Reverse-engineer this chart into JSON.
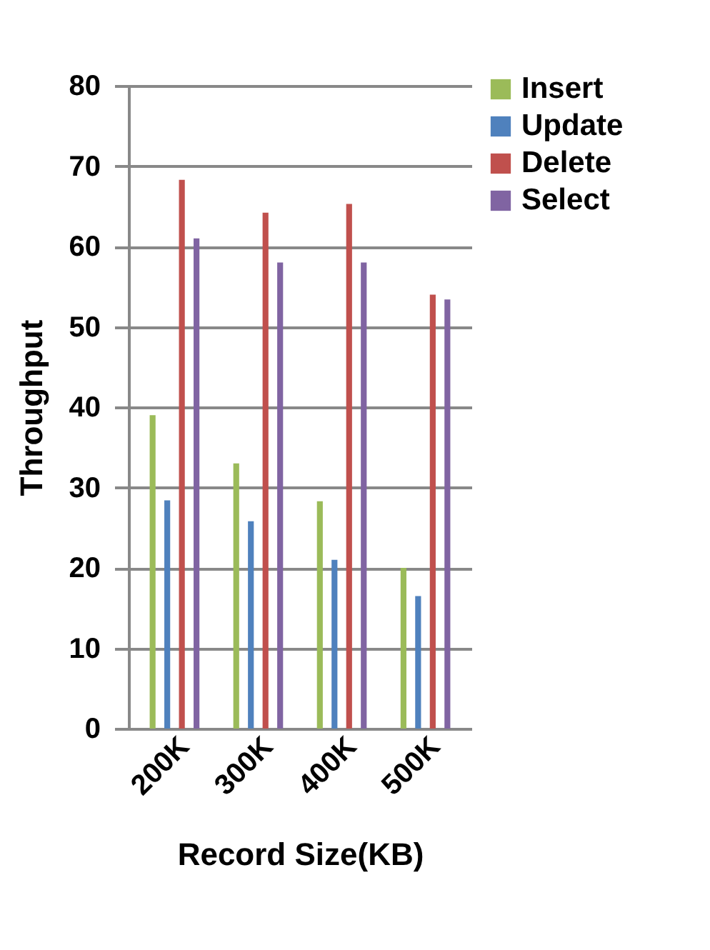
{
  "chart_data": {
    "type": "bar",
    "xlabel": "Record Size(KB)",
    "ylabel": "Throughput",
    "categories": [
      "200K",
      "300K",
      "400K",
      "500K"
    ],
    "series": [
      {
        "name": "Insert",
        "color": "#9bbb59",
        "values": [
          39,
          33,
          28.3,
          20
        ]
      },
      {
        "name": "Update",
        "color": "#4f81bd",
        "values": [
          28.4,
          25.8,
          21,
          16.5
        ]
      },
      {
        "name": "Delete",
        "color": "#c0504d",
        "values": [
          68.3,
          64.2,
          65.3,
          54
        ]
      },
      {
        "name": "Select",
        "color": "#8064a2",
        "values": [
          61,
          58,
          58,
          53.4
        ]
      }
    ],
    "ylim": [
      0,
      80
    ],
    "yticks": [
      0,
      10,
      20,
      30,
      40,
      50,
      60,
      70,
      80
    ],
    "grid": "y",
    "legend": "top right"
  }
}
